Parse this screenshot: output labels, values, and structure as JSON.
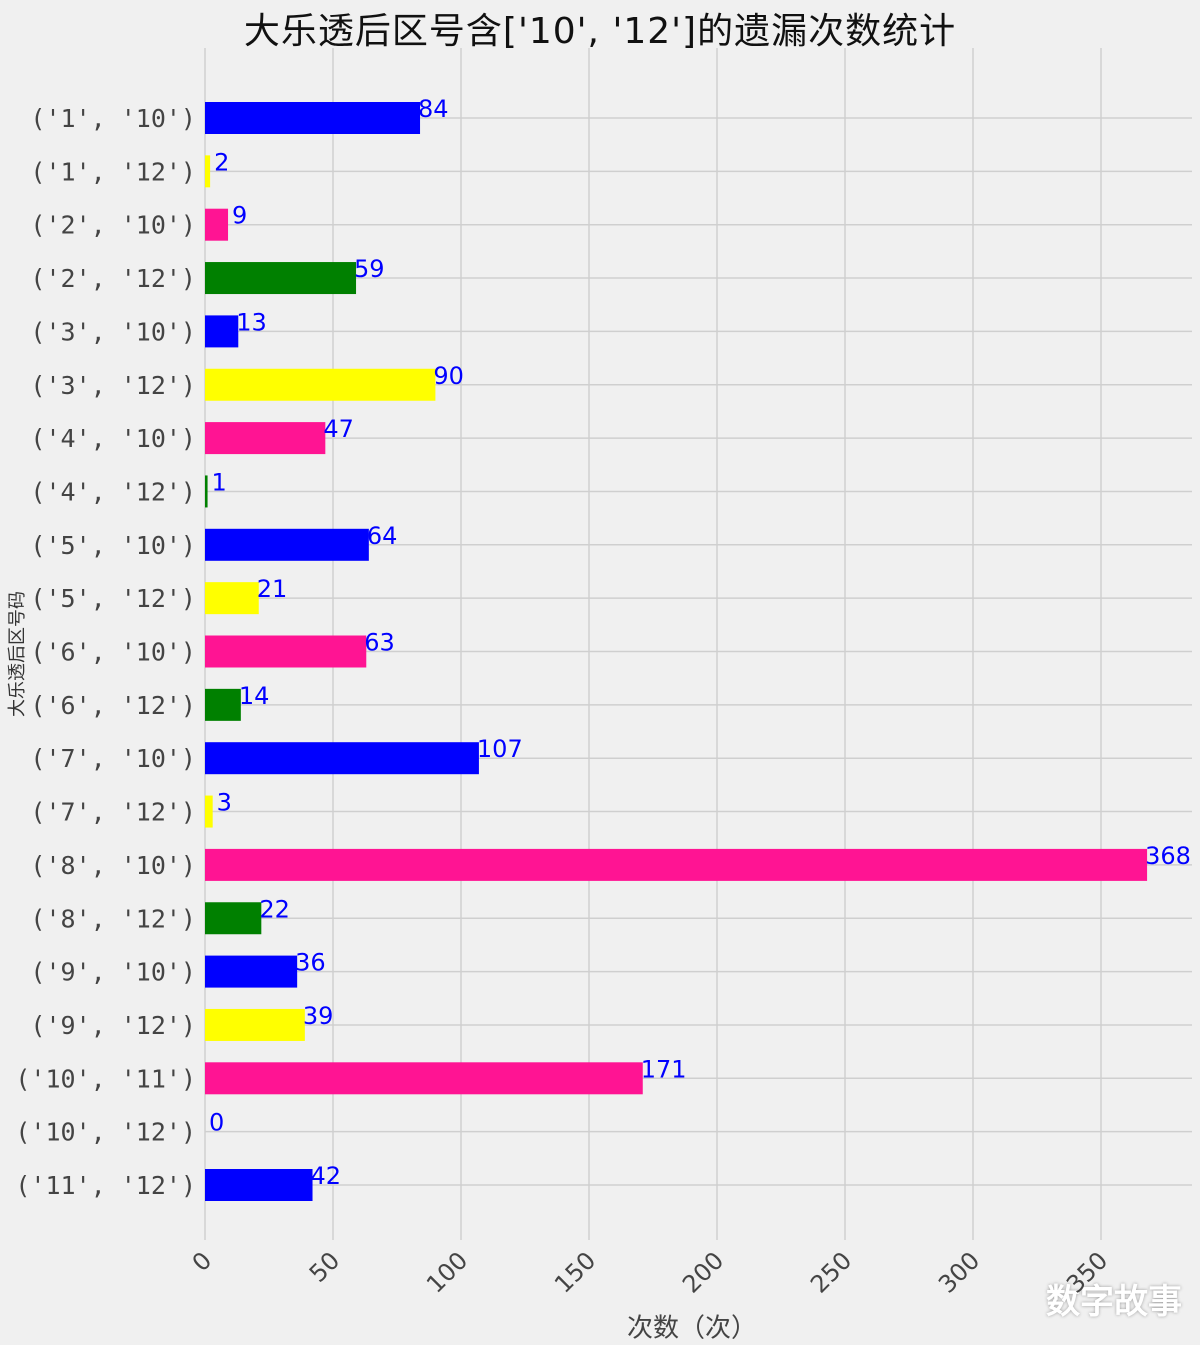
{
  "chart_data": {
    "type": "bar",
    "orientation": "horizontal",
    "title": "大乐透后区号含['10', '12']的遗漏次数统计",
    "xlabel": "次数（次）",
    "ylabel": "大乐透后区号码",
    "categories": [
      "('1', '10')",
      "('1', '12')",
      "('2', '10')",
      "('2', '12')",
      "('3', '10')",
      "('3', '12')",
      "('4', '10')",
      "('4', '12')",
      "('5', '10')",
      "('5', '12')",
      "('6', '10')",
      "('6', '12')",
      "('7', '10')",
      "('7', '12')",
      "('8', '10')",
      "('8', '12')",
      "('9', '10')",
      "('9', '12')",
      "('10', '11')",
      "('10', '12')",
      "('11', '12')"
    ],
    "values": [
      84,
      2,
      9,
      59,
      13,
      90,
      47,
      1,
      64,
      21,
      63,
      14,
      107,
      3,
      368,
      22,
      36,
      39,
      171,
      0,
      42
    ],
    "bar_colors": [
      "#0000ff",
      "#ffff00",
      "#ff1493",
      "#008000",
      "#0000ff",
      "#ffff00",
      "#ff1493",
      "#008000",
      "#0000ff",
      "#ffff00",
      "#ff1493",
      "#008000",
      "#0000ff",
      "#ffff00",
      "#ff1493",
      "#008000",
      "#0000ff",
      "#ffff00",
      "#ff1493",
      "#008000",
      "#0000ff"
    ],
    "label_color": "#0000ff",
    "x_ticks": [
      0,
      50,
      100,
      150,
      200,
      250,
      300,
      350
    ],
    "xlim": [
      0,
      380
    ],
    "grid": true
  },
  "watermark": "数字故事"
}
